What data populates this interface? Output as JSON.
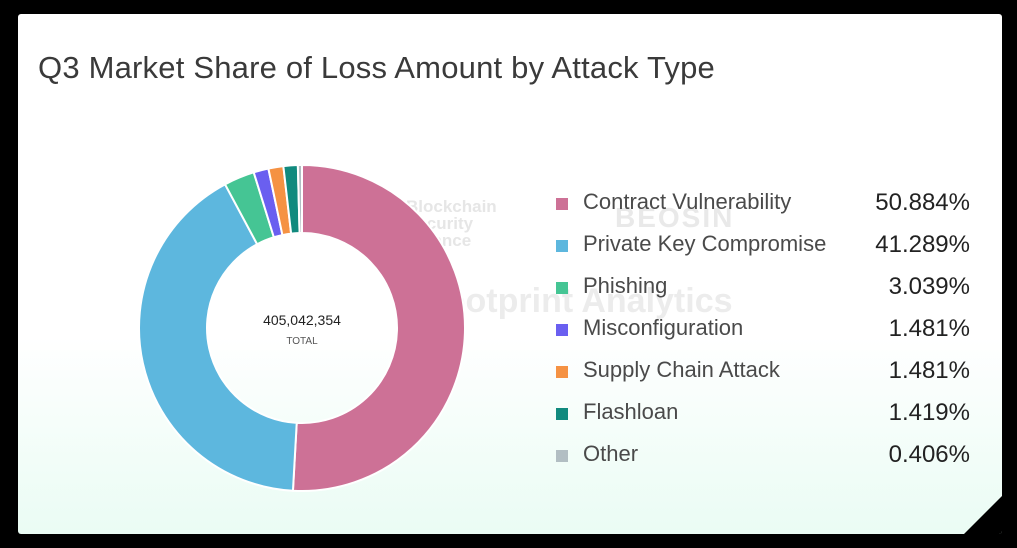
{
  "chart_data": {
    "type": "pie",
    "title": "Q3 Market Share of Loss Amount by Attack Type",
    "total_value": "405,042,354",
    "total_label": "TOTAL",
    "categories": [
      "Contract Vulnerability",
      "Private Key Compromise",
      "Phishing",
      "Misconfiguration",
      "Supply Chain Attack",
      "Flashloan",
      "Other"
    ],
    "values": [
      50.884,
      41.289,
      3.039,
      1.481,
      1.481,
      1.419,
      0.406
    ],
    "value_labels": [
      "50.884%",
      "41.289%",
      "3.039%",
      "1.481%",
      "1.481%",
      "1.419%",
      "0.406%"
    ],
    "colors": [
      "#cd7196",
      "#5db7de",
      "#45c594",
      "#6a5ff0",
      "#f59243",
      "#118a7e",
      "#b2bec3"
    ],
    "legend_position": "right",
    "donut": true
  },
  "watermarks": {
    "alliance": [
      "Blockchain",
      "Security",
      "Alliance"
    ],
    "beosin": "BEOSIN",
    "footprint": "Footprint Analytics"
  }
}
